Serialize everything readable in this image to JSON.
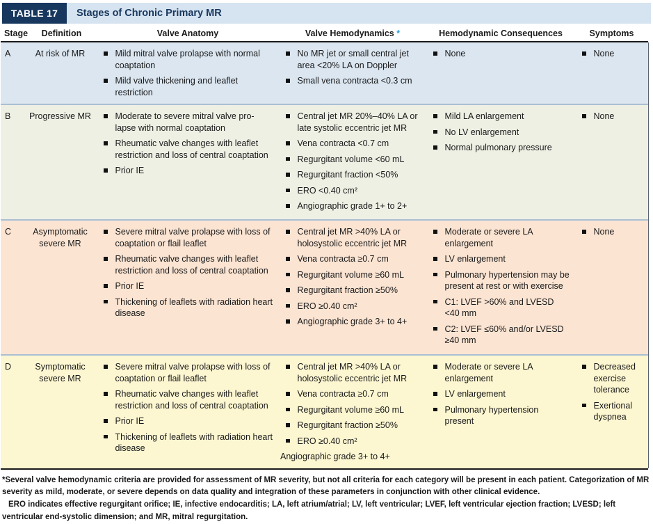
{
  "table": {
    "tag": "TABLE 17",
    "title": "Stages of Chronic Primary MR",
    "footnote_marker": "*",
    "columns": [
      "Stage",
      "Definition",
      "Valve Anatomy",
      "Valve Hemodynamics",
      "Hemodynamic Consequences",
      "Symptoms"
    ],
    "colors": {
      "navy": "#17375e",
      "title_band": "#d6e3f0",
      "asterisk_blue": "#2f9cd6",
      "row_a_bg": "#dbe6f0",
      "row_b_bg": "#eef0e4",
      "row_c_bg": "#fbe4d2",
      "row_d_bg": "#fcf6d1"
    },
    "rows": [
      {
        "stage": "A",
        "definition": "At risk of MR",
        "bg": "#dbe6f0",
        "anatomy": [
          "Mild mitral valve prolapse with normal coaptation",
          "Mild valve thickening and leaflet restriction"
        ],
        "hemodynamics": [
          "No MR jet or small central jet area <20% LA on Doppler",
          "Small vena contracta <0.3 cm"
        ],
        "consequences": [
          "None"
        ],
        "symptoms": [
          "None"
        ]
      },
      {
        "stage": "B",
        "definition": "Progressive MR",
        "bg": "#eef0e4",
        "anatomy": [
          "Moderate to severe mitral valve pro-lapse with normal coaptation",
          "Rheumatic valve changes with leaflet restriction and loss of central coaptation",
          "Prior IE"
        ],
        "hemodynamics": [
          "Central jet MR 20%–40% LA or late systolic eccentric jet MR",
          "Vena contracta <0.7 cm",
          "Regurgitant volume <60 mL",
          "Regurgitant fraction <50%",
          "ERO <0.40 cm²",
          "Angiographic grade 1+ to 2+"
        ],
        "consequences": [
          "Mild LA enlargement",
          "No LV enlargement",
          "Normal pulmonary pressure"
        ],
        "symptoms": [
          "None"
        ]
      },
      {
        "stage": "C",
        "definition": "Asymptomatic severe MR",
        "bg": "#fbe4d2",
        "anatomy": [
          "Severe mitral valve prolapse with loss of coaptation or flail leaflet",
          "Rheumatic valve changes with leaflet restriction and loss of central coaptation",
          "Prior IE",
          "Thickening of leaflets with radiation heart disease"
        ],
        "hemodynamics": [
          "Central jet MR >40% LA or holosystolic eccentric jet MR",
          "Vena contracta ≥0.7 cm",
          "Regurgitant volume ≥60 mL",
          "Regurgitant fraction ≥50%",
          "ERO ≥0.40 cm²",
          "Angiographic grade 3+ to 4+"
        ],
        "consequences": [
          "Moderate or severe LA enlargement",
          "LV enlargement",
          "Pulmonary hypertension may be present at rest or with exercise",
          "C1: LVEF >60% and LVESD <40 mm",
          "C2: LVEF ≤60% and/or LVESD ≥40 mm"
        ],
        "symptoms": [
          "None"
        ]
      },
      {
        "stage": "D",
        "definition": "Symptomatic severe MR",
        "bg": "#fcf6d1",
        "anatomy": [
          "Severe mitral valve prolapse with loss of coaptation or flail leaflet",
          "Rheumatic valve changes with leaflet restriction and loss of central coaptation",
          "Prior IE",
          "Thickening of leaflets with radiation heart disease"
        ],
        "hemodynamics": [
          "Central jet MR >40% LA or holosystolic eccentric jet MR",
          "Vena contracta ≥0.7 cm",
          "Regurgitant volume ≥60 mL",
          "Regurgitant fraction ≥50%",
          "ERO ≥0.40 cm²",
          {
            "text": "Angiographic grade 3+ to 4+",
            "bullet": false
          }
        ],
        "consequences": [
          "Moderate or severe LA enlargement",
          "LV enlargement",
          "Pulmonary hypertension present"
        ],
        "symptoms": [
          "Decreased exercise tolerance",
          "Exertional dyspnea"
        ]
      }
    ],
    "footnotes": [
      "*Several valve hemodynamic criteria are provided for assessment of MR severity, but not all criteria for each category will be present in each patient. Categorization of MR severity as mild, moderate, or severe depends on data quality and integration of these parameters in conjunction with other clinical evidence.",
      "ERO indicates effective regurgitant orifice; IE, infective endocarditis; LA, left atrium/atrial; LV, left ventricular; LVEF, left ventricular ejection fraction; LVESD; left ventricular end-systolic dimension; and MR, mitral regurgitation."
    ]
  }
}
